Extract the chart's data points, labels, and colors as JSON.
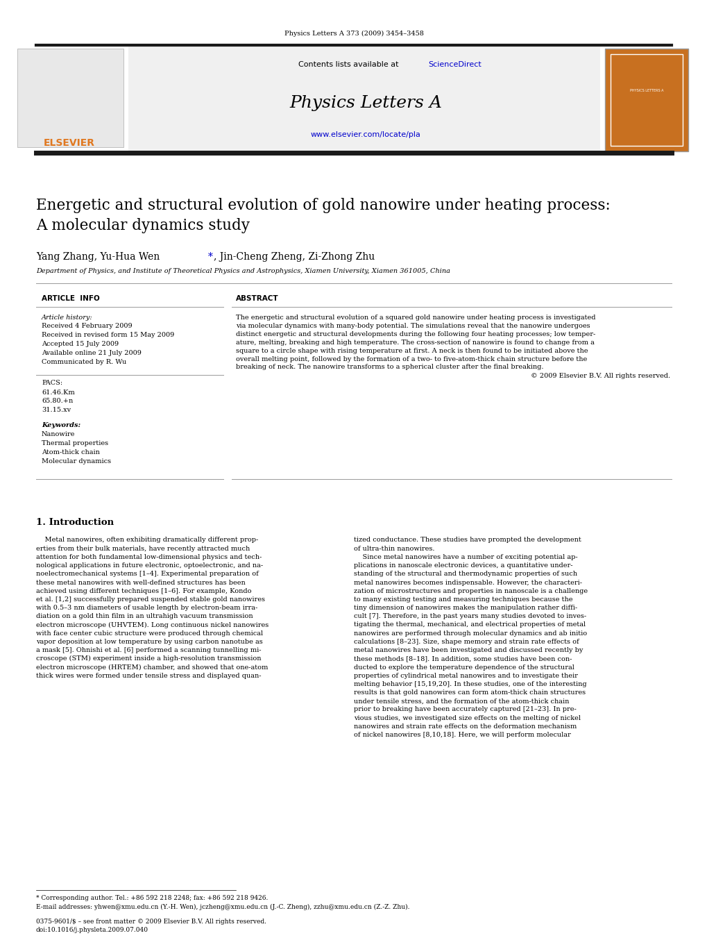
{
  "page_width": 10.2,
  "page_height": 13.51,
  "bg_color": "#ffffff",
  "journal_ref": "Physics Letters A 373 (2009) 3454–3458",
  "header_bg": "#f0f0f0",
  "sciencedirect_color": "#0000cc",
  "journal_title": "Physics Letters A",
  "journal_url": "www.elsevier.com/locate/pla",
  "journal_url_color": "#0000cc",
  "thick_bar_color": "#1a1a1a",
  "elsevier_color": "#e07820",
  "paper_title": "Energetic and structural evolution of gold nanowire under heating process:\nA molecular dynamics study",
  "affiliation": "Department of Physics, and Institute of Theoretical Physics and Astrophysics, Xiamen University, Xiamen 361005, China",
  "article_info_label": "ARTICLE  INFO",
  "abstract_label": "ABSTRACT",
  "article_history_label": "Article history:",
  "article_history": [
    "Received 4 February 2009",
    "Received in revised form 15 May 2009",
    "Accepted 15 July 2009",
    "Available online 21 July 2009",
    "Communicated by R. Wu"
  ],
  "pacs_label": "PACS:",
  "pacs": [
    "61.46.Km",
    "65.80.+n",
    "31.15.xv"
  ],
  "keywords_label": "Keywords:",
  "keywords": [
    "Nanowire",
    "Thermal properties",
    "Atom-thick chain",
    "Molecular dynamics"
  ],
  "abstract_lines": [
    "The energetic and structural evolution of a squared gold nanowire under heating process is investigated",
    "via molecular dynamics with many-body potential. The simulations reveal that the nanowire undergoes",
    "distinct energetic and structural developments during the following four heating processes; low temper-",
    "ature, melting, breaking and high temperature. The cross-section of nanowire is found to change from a",
    "square to a circle shape with rising temperature at first. A neck is then found to be initiated above the",
    "overall melting point, followed by the formation of a two- to five-atom-thick chain structure before the",
    "breaking of neck. The nanowire transforms to a spherical cluster after the final breaking."
  ],
  "abstract_copyright": "© 2009 Elsevier B.V. All rights reserved.",
  "intro_title": "1. Introduction",
  "intro_left_lines": [
    "    Metal nanowires, often exhibiting dramatically different prop-",
    "erties from their bulk materials, have recently attracted much",
    "attention for both fundamental low-dimensional physics and tech-",
    "nological applications in future electronic, optoelectronic, and na-",
    "noelectromechanical systems [1–4]. Experimental preparation of",
    "these metal nanowires with well-defined structures has been",
    "achieved using different techniques [1–6]. For example, Kondo",
    "et al. [1,2] successfully prepared suspended stable gold nanowires",
    "with 0.5–3 nm diameters of usable length by electron-beam irra-",
    "diation on a gold thin film in an ultrahigh vacuum transmission",
    "electron microscope (UHVTEM). Long continuous nickel nanowires",
    "with face center cubic structure were produced through chemical",
    "vapor deposition at low temperature by using carbon nanotube as",
    "a mask [5]. Ohnishi et al. [6] performed a scanning tunnelling mi-",
    "croscope (STM) experiment inside a high-resolution transmission",
    "electron microscope (HRTEM) chamber, and showed that one-atom",
    "thick wires were formed under tensile stress and displayed quan-"
  ],
  "intro_right_lines": [
    "tized conductance. These studies have prompted the development",
    "of ultra-thin nanowires.",
    "    Since metal nanowires have a number of exciting potential ap-",
    "plications in nanoscale electronic devices, a quantitative under-",
    "standing of the structural and thermodynamic properties of such",
    "metal nanowires becomes indispensable. However, the characteri-",
    "zation of microstructures and properties in nanoscale is a challenge",
    "to many existing testing and measuring techniques because the",
    "tiny dimension of nanowires makes the manipulation rather diffi-",
    "cult [7]. Therefore, in the past years many studies devoted to inves-",
    "tigating the thermal, mechanical, and electrical properties of metal",
    "nanowires are performed through molecular dynamics and ab initio",
    "calculations [8–23]. Size, shape memory and strain rate effects of",
    "metal nanowires have been investigated and discussed recently by",
    "these methods [8–18]. In addition, some studies have been con-",
    "ducted to explore the temperature dependence of the structural",
    "properties of cylindrical metal nanowires and to investigate their",
    "melting behavior [15,19,20]. In these studies, one of the interesting",
    "results is that gold nanowires can form atom-thick chain structures",
    "under tensile stress, and the formation of the atom-thick chain",
    "prior to breaking have been accurately captured [21–23]. In pre-",
    "vious studies, we investigated size effects on the melting of nickel",
    "nanowires and strain rate effects on the deformation mechanism",
    "of nickel nanowires [8,10,18]. Here, we will perform molecular"
  ],
  "footnote_star": "* Corresponding author. Tel.: +86 592 218 2248; fax: +86 592 218 9426.",
  "footnote_email": "E-mail addresses: yhwen@xmu.edu.cn (Y.-H. Wen), jczheng@xmu.edu.cn (J.-C. Zheng), zzhu@xmu.edu.cn (Z.-Z. Zhu).",
  "bottom_line1": "0375-9601/$ – see front matter © 2009 Elsevier B.V. All rights reserved.",
  "bottom_line2": "doi:10.1016/j.physleta.2009.07.040"
}
